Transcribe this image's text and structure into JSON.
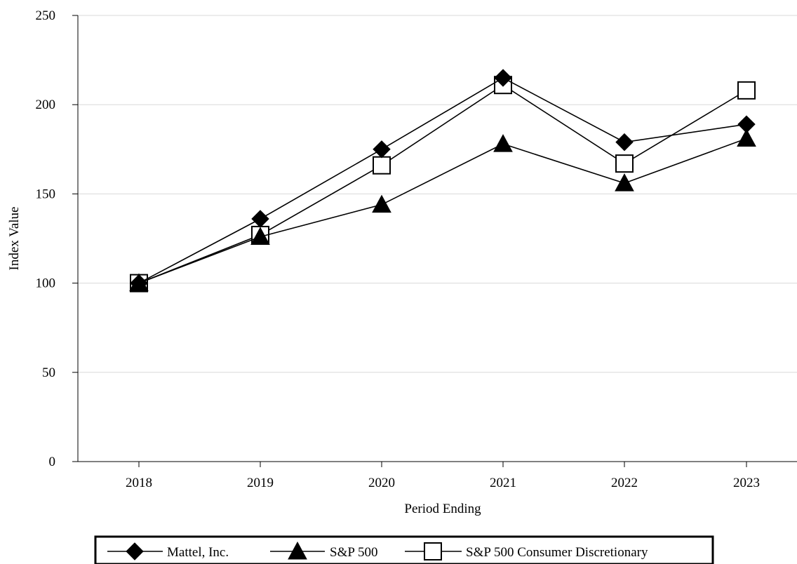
{
  "chart_data": {
    "type": "line",
    "title": "",
    "xlabel": "Period Ending",
    "ylabel": "Index Value",
    "categories": [
      "2018",
      "2019",
      "2020",
      "2021",
      "2022",
      "2023"
    ],
    "ylim": [
      0,
      250
    ],
    "yticks": [
      "0",
      "50",
      "100",
      "150",
      "200",
      "250"
    ],
    "grid": true,
    "legend_position": "bottom",
    "series": [
      {
        "name": "Mattel, Inc.",
        "marker": "diamond-filled",
        "color": "#000000",
        "values": [
          100,
          136,
          175,
          215,
          179,
          189
        ]
      },
      {
        "name": "S&P 500",
        "marker": "triangle-filled",
        "color": "#000000",
        "values": [
          100,
          126,
          144,
          178,
          156,
          181
        ]
      },
      {
        "name": "S&P 500 Consumer Discretionary",
        "marker": "square-open",
        "color": "#000000",
        "values": [
          100,
          127,
          166,
          211,
          167,
          208
        ]
      }
    ]
  }
}
